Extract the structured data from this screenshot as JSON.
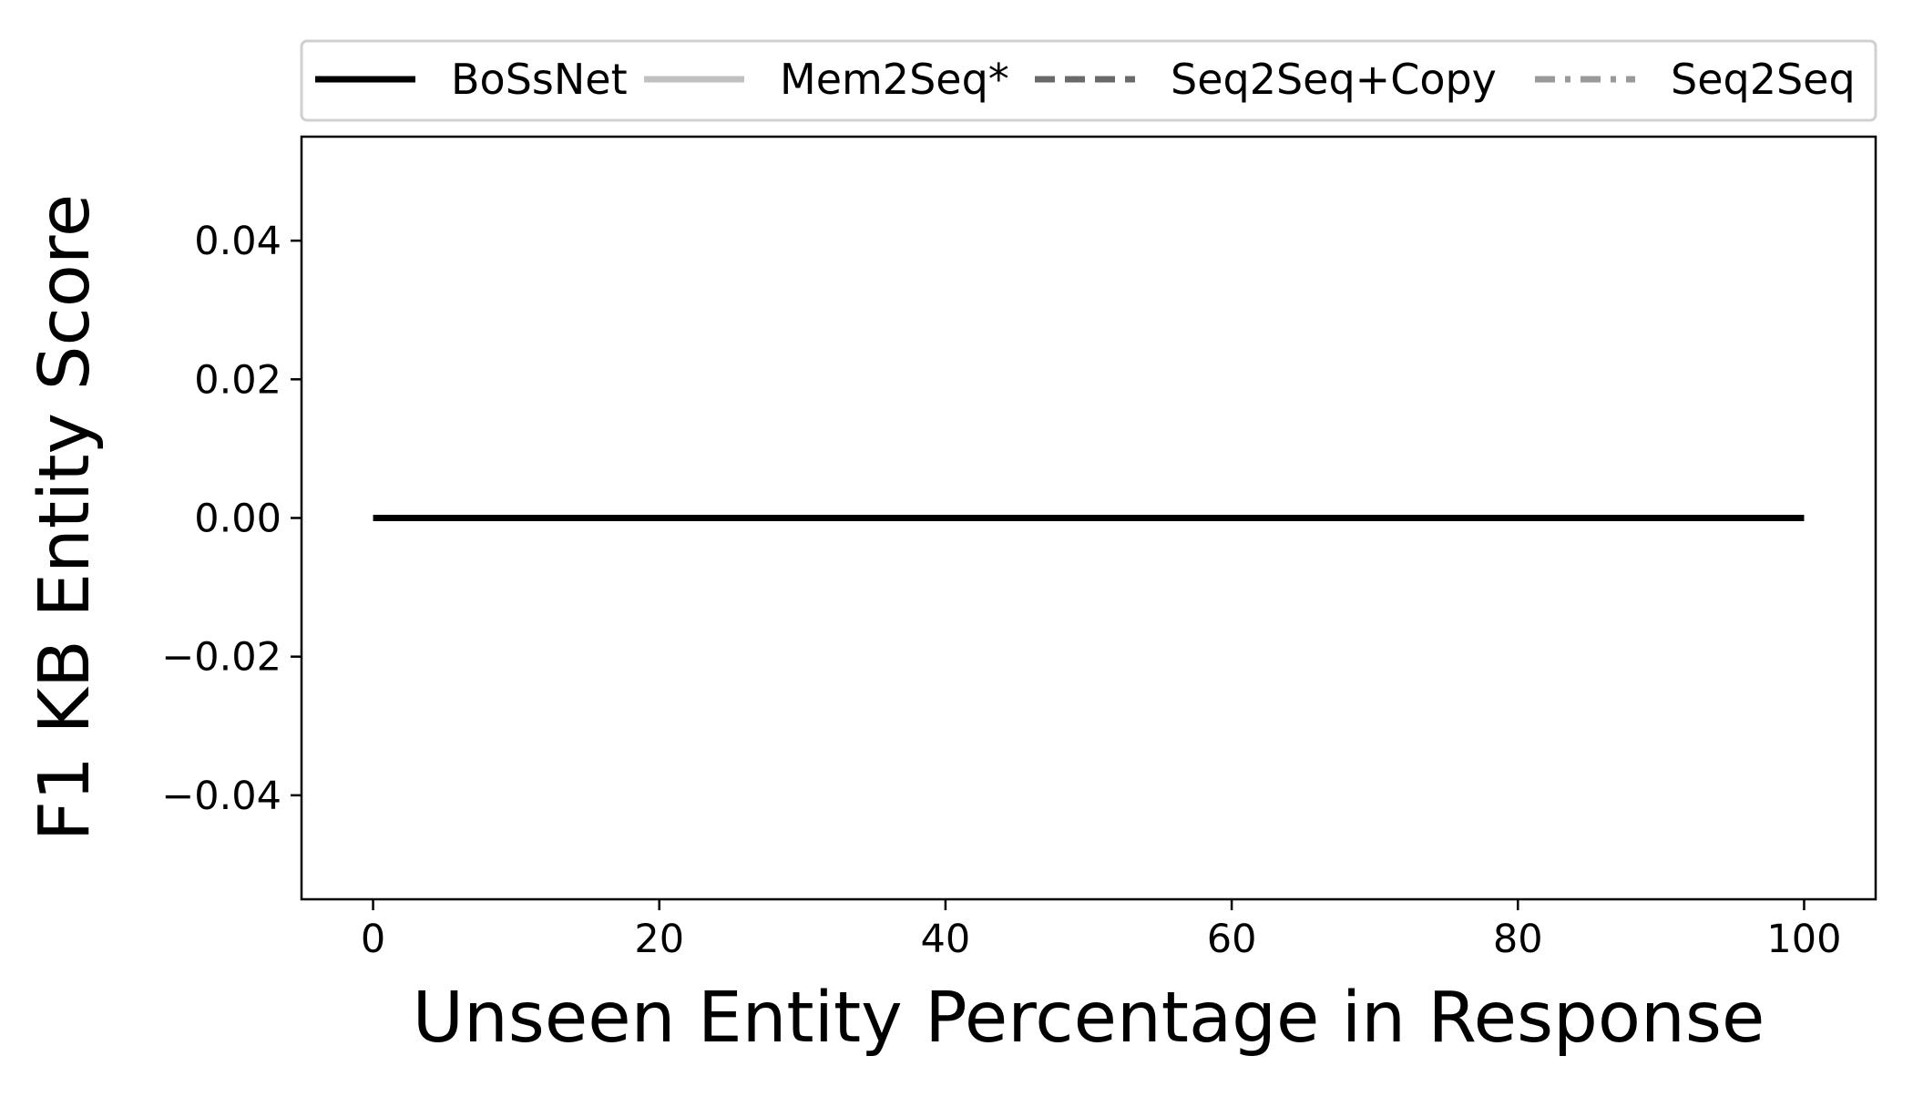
{
  "chart_data": {
    "type": "line",
    "title": "",
    "xlabel": "Unseen Entity Percentage in Response",
    "ylabel": "F1 KB Entity Score",
    "xlim": [
      -5,
      105
    ],
    "ylim": [
      -0.055,
      0.055
    ],
    "x_ticks": [
      0,
      20,
      40,
      60,
      80,
      100
    ],
    "x_tick_labels": [
      "0",
      "20",
      "40",
      "60",
      "80",
      "100"
    ],
    "y_ticks": [
      0.04,
      0.02,
      0.0,
      -0.02,
      -0.04
    ],
    "y_tick_labels": [
      "0.04",
      "0.02",
      "0.00",
      "−0.02",
      "−0.04"
    ],
    "grid": false,
    "legend_position": "top",
    "series": [
      {
        "name": "BoSsNet",
        "style": "solid",
        "color": "#000000",
        "x": [
          0,
          10,
          20,
          30,
          40,
          50,
          60,
          70,
          80,
          90,
          100
        ],
        "y": [
          0,
          0,
          0,
          0,
          0,
          0,
          0,
          0,
          0,
          0,
          0
        ]
      },
      {
        "name": "Mem2Seq*",
        "style": "solid",
        "color": "#c0c0c0",
        "x": [
          0,
          10,
          20,
          30,
          40,
          50,
          60,
          70,
          80,
          90,
          100
        ],
        "y": [
          0,
          0,
          0,
          0,
          0,
          0,
          0,
          0,
          0,
          0,
          0
        ]
      },
      {
        "name": "Seq2Seq+Copy",
        "style": "dashed",
        "color": "#6a6a6a",
        "x": [
          0,
          10,
          20,
          30,
          40,
          50,
          60,
          70,
          80,
          90,
          100
        ],
        "y": [
          0,
          0,
          0,
          0,
          0,
          0,
          0,
          0,
          0,
          0,
          0
        ]
      },
      {
        "name": "Seq2Seq",
        "style": "dashdot",
        "color": "#9a9a9a",
        "x": [
          0,
          10,
          20,
          30,
          40,
          50,
          60,
          70,
          80,
          90,
          100
        ],
        "y": [
          0,
          0,
          0,
          0,
          0,
          0,
          0,
          0,
          0,
          0,
          0
        ]
      }
    ]
  }
}
